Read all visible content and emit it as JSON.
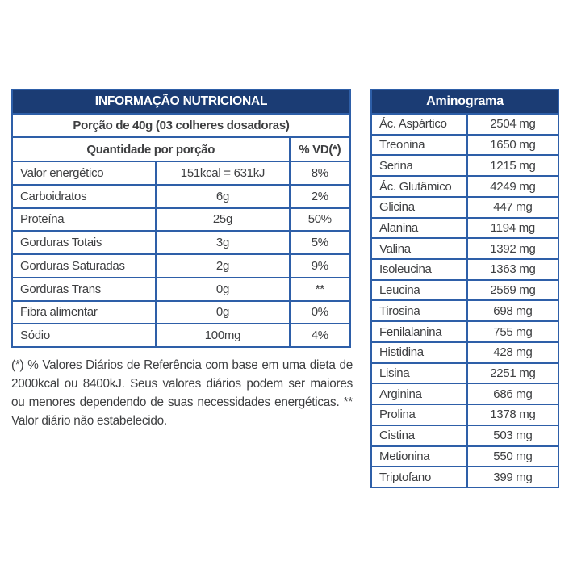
{
  "colors": {
    "header_bg": "#1b3c74",
    "border": "#2e5fa8",
    "text": "#3e3f41",
    "header_text": "#ffffff"
  },
  "nutrition": {
    "title": "INFORMAÇÃO NUTRICIONAL",
    "serving": "Porção de 40g (03 colheres dosadoras)",
    "columns": {
      "quantity": "Quantidade por porção",
      "vd": "% VD(*)"
    },
    "rows": [
      {
        "label": "Valor energético",
        "value": "151kcal = 631kJ",
        "vd": "8%"
      },
      {
        "label": "Carboidratos",
        "value": "6g",
        "vd": "2%"
      },
      {
        "label": "Proteína",
        "value": "25g",
        "vd": "50%"
      },
      {
        "label": "Gorduras Totais",
        "value": "3g",
        "vd": "5%"
      },
      {
        "label": "Gorduras Saturadas",
        "value": "2g",
        "vd": "9%"
      },
      {
        "label": "Gorduras Trans",
        "value": "0g",
        "vd": "**"
      },
      {
        "label": "Fibra alimentar",
        "value": "0g",
        "vd": "0%"
      },
      {
        "label": "Sódio",
        "value": "100mg",
        "vd": "4%"
      }
    ],
    "footnote": "(*) % Valores Diários de Referência com base em uma dieta de 2000kcal ou 8400kJ. Seus valores diários podem ser maiores ou menores dependendo de suas necessidades energéticas. ** Valor diário não estabelecido."
  },
  "aminogram": {
    "title": "Aminograma",
    "rows": [
      {
        "label": "Ác. Aspártico",
        "value": "2504 mg"
      },
      {
        "label": "Treonina",
        "value": "1650 mg"
      },
      {
        "label": "Serina",
        "value": "1215 mg"
      },
      {
        "label": "Ác. Glutâmico",
        "value": "4249 mg"
      },
      {
        "label": "Glicina",
        "value": "447 mg"
      },
      {
        "label": "Alanina",
        "value": "1194 mg"
      },
      {
        "label": "Valina",
        "value": "1392 mg"
      },
      {
        "label": "Isoleucina",
        "value": "1363 mg"
      },
      {
        "label": "Leucina",
        "value": "2569 mg"
      },
      {
        "label": "Tirosina",
        "value": "698 mg"
      },
      {
        "label": "Fenilalanina",
        "value": "755 mg"
      },
      {
        "label": "Histidina",
        "value": "428 mg"
      },
      {
        "label": "Lisina",
        "value": "2251 mg"
      },
      {
        "label": "Arginina",
        "value": "686 mg"
      },
      {
        "label": "Prolina",
        "value": "1378 mg"
      },
      {
        "label": "Cistina",
        "value": "503 mg"
      },
      {
        "label": "Metionina",
        "value": "550 mg"
      },
      {
        "label": "Triptofano",
        "value": "399 mg"
      }
    ]
  }
}
